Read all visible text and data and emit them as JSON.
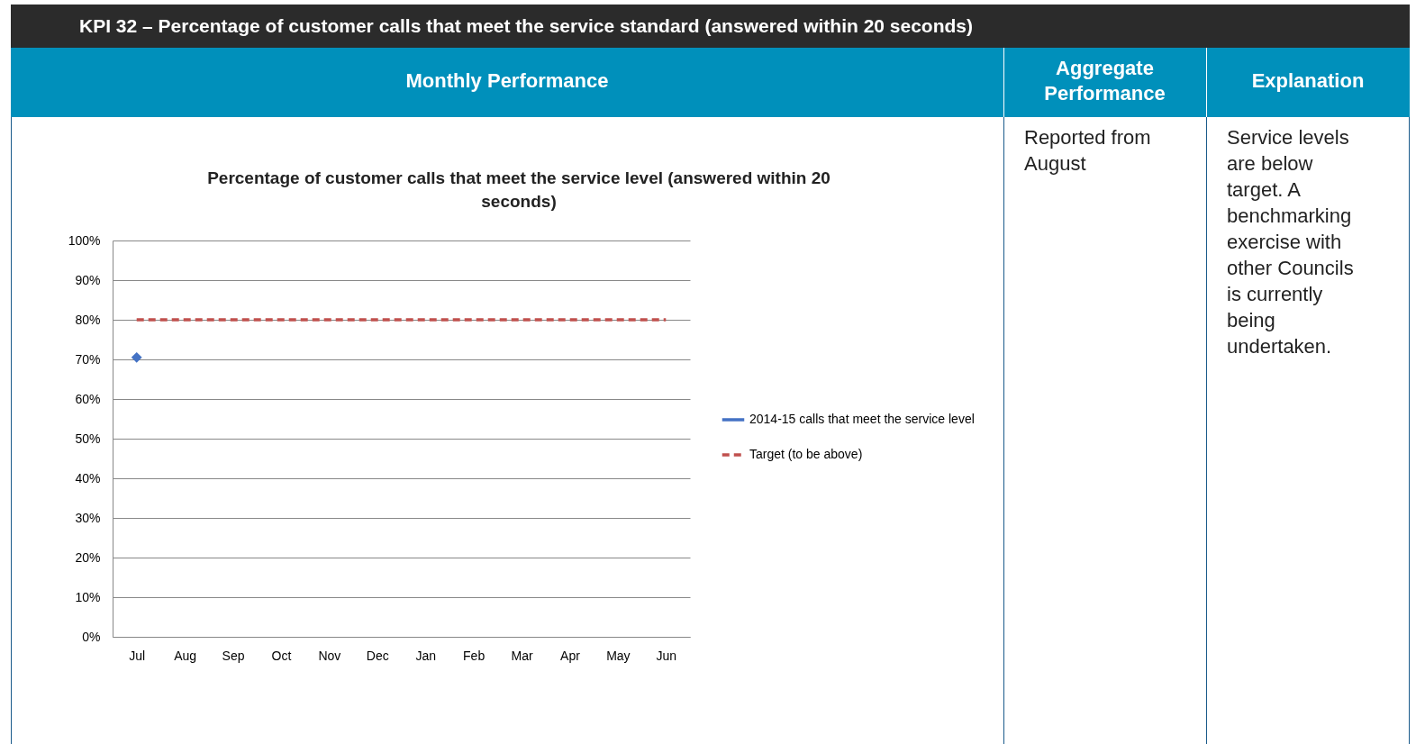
{
  "chart_data": {
    "type": "line",
    "title": "Percentage of customer calls that meet the service level (answered within 20 seconds)",
    "categories": [
      "Jul",
      "Aug",
      "Sep",
      "Oct",
      "Nov",
      "Dec",
      "Jan",
      "Feb",
      "Mar",
      "Apr",
      "May",
      "Jun"
    ],
    "series": [
      {
        "name": "2014-15 calls that meet the service level",
        "color": "#4472c4",
        "marker": "diamond",
        "line_style": "solid",
        "values": [
          70.5,
          null,
          null,
          null,
          null,
          null,
          null,
          null,
          null,
          null,
          null,
          null
        ]
      },
      {
        "name": "Target (to be above)",
        "color": "#c0504d",
        "marker": "none",
        "line_style": "dashed",
        "values": [
          80,
          80,
          80,
          80,
          80,
          80,
          80,
          80,
          80,
          80,
          80,
          80
        ]
      }
    ],
    "ylim": [
      0,
      100
    ],
    "yticks": [
      {
        "value": 0,
        "label": "0%"
      },
      {
        "value": 10,
        "label": "10%"
      },
      {
        "value": 20,
        "label": "20%"
      },
      {
        "value": 30,
        "label": "30%"
      },
      {
        "value": 40,
        "label": "40%"
      },
      {
        "value": 50,
        "label": "50%"
      },
      {
        "value": 60,
        "label": "60%"
      },
      {
        "value": 70,
        "label": "70%"
      },
      {
        "value": 80,
        "label": "80%"
      },
      {
        "value": 90,
        "label": "90%"
      },
      {
        "value": 100,
        "label": "100%"
      }
    ],
    "grid": "y",
    "legend": "right",
    "annotations": [
      "KPI 32 – Percentage of customer calls that meet the service standard (answered within 20 seconds)",
      "Monthly Performance",
      "Aggregate Performance",
      "Explanation",
      "Reported from August",
      "Service levels are below target. A benchmarking exercise with other Councils is currently being undertaken."
    ]
  }
}
